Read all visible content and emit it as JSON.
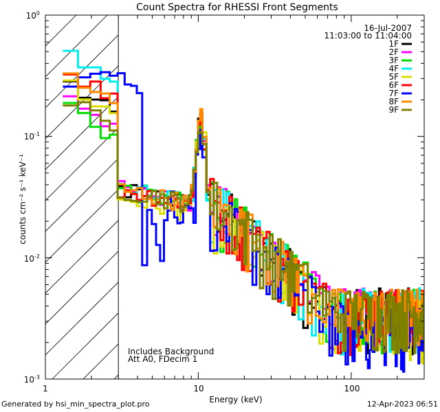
{
  "chart_data": {
    "type": "line",
    "title": "Count Spectra for RHESSI Front Segments",
    "xlabel": "Energy (keV)",
    "ylabel": "counts cm⁻² s⁻¹ keV⁻¹",
    "xscale": "log",
    "yscale": "log",
    "xlim": [
      1,
      300
    ],
    "ylim": [
      0.001,
      1
    ],
    "x_ticks": [
      {
        "value": 1,
        "label": "1"
      },
      {
        "value": 10,
        "label": "10"
      },
      {
        "value": 100,
        "label": "100"
      }
    ],
    "y_ticks": [
      {
        "value": 1,
        "base": "10",
        "exp": "0"
      },
      {
        "value": 0.1,
        "base": "10",
        "exp": "-1"
      },
      {
        "value": 0.01,
        "base": "10",
        "exp": "-2"
      },
      {
        "value": 0.001,
        "base": "10",
        "exp": "-3"
      }
    ],
    "date_label": "16-Jul-2007",
    "time_range_label": "11:03:00 to 11:04:00",
    "annotations": [
      "Includes Background",
      "Att A0, FDecim 1"
    ],
    "shaded_region": {
      "from": 1,
      "to": 3
    },
    "series": [
      {
        "name": "1F",
        "color": "#000000",
        "scale": 0.3,
        "n7": 0.9,
        "n3": 1.0
      },
      {
        "name": "2F",
        "color": "#ff00ff",
        "scale": 0.25,
        "n7": 0.95,
        "n3": 1.0
      },
      {
        "name": "3F",
        "color": "#00dd00",
        "scale": 0.2,
        "n7": 0.95,
        "n3": 1.0
      },
      {
        "name": "4F",
        "color": "#00eeee",
        "scale": 0.57,
        "n7": 0.85,
        "n3": 1.0
      },
      {
        "name": "5F",
        "color": "#dddd00",
        "scale": 0.3,
        "n7": 1.0,
        "n3": 0.85
      },
      {
        "name": "6F",
        "color": "#ff0000",
        "scale": 0.4,
        "n7": 0.9,
        "n3": 1.0
      },
      {
        "name": "7F",
        "color": "#0000ff",
        "scale": 0.2,
        "n7": 0.9,
        "n3": 1.0
      },
      {
        "name": "8F",
        "color": "#ff8800",
        "scale": 0.36,
        "n7": 1.0,
        "n3": 1.0
      },
      {
        "name": "9F",
        "color": "#808000",
        "scale": 0.22,
        "n7": 0.85,
        "n3": 1.0
      }
    ]
  },
  "footer": {
    "left": "Generated by hsi_min_spectra_plot.pro",
    "right": "12-Apr-2023 06:51"
  }
}
